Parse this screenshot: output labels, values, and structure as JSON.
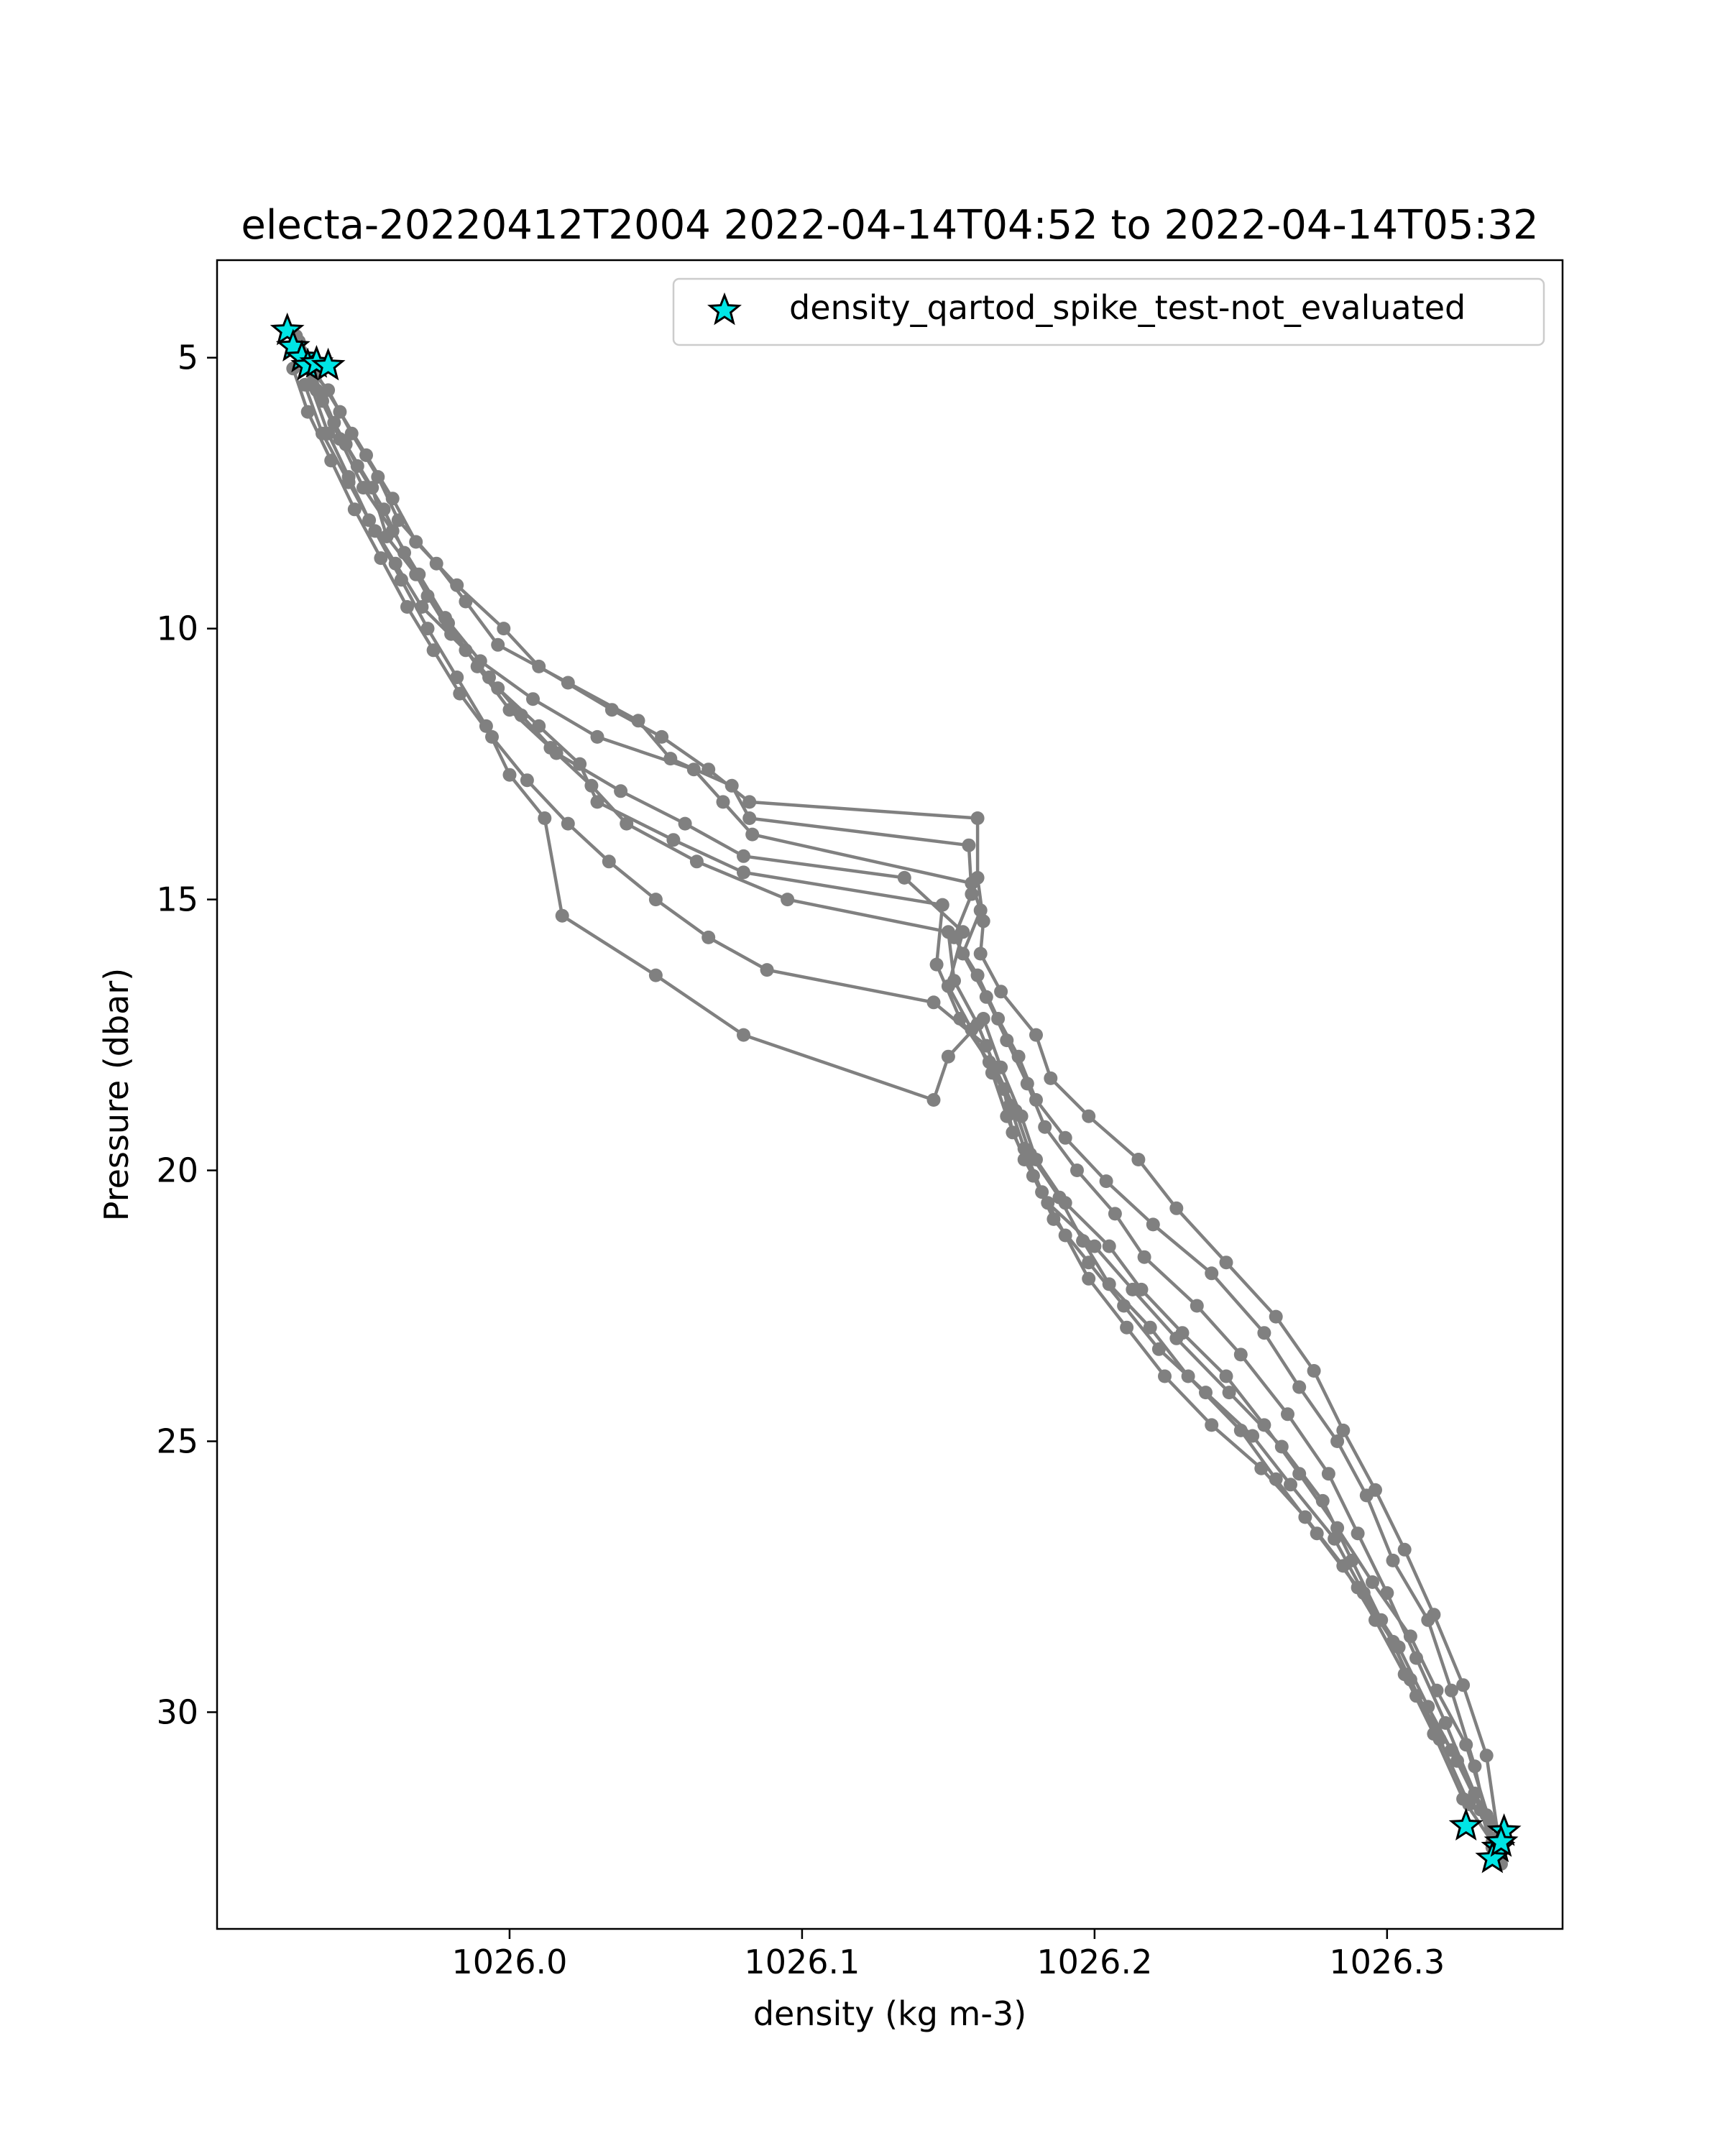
{
  "chart_data": {
    "type": "line",
    "title": "electa-20220412T2004 2022-04-14T04:52 to 2022-04-14T05:32",
    "xlabel": "density (kg m-3)",
    "ylabel": "Pressure (dbar)",
    "xlim": [
      1025.9,
      1026.36
    ],
    "ylim": [
      34.0,
      3.2
    ],
    "y_inverted": true,
    "x_ticks": [
      1026.0,
      1026.1,
      1026.2,
      1026.3
    ],
    "x_tick_labels": [
      "1026.0",
      "1026.1",
      "1026.2",
      "1026.3"
    ],
    "y_ticks": [
      5,
      10,
      15,
      20,
      25,
      30
    ],
    "y_tick_labels": [
      "5",
      "10",
      "15",
      "20",
      "25",
      "30"
    ],
    "grid": false,
    "line_color": "#808080",
    "series": [
      {
        "x": [
          1025.927,
          1025.93,
          1025.934,
          1025.942,
          1025.951,
          1025.96,
          1025.968,
          1025.982,
          1025.998,
          1026.01,
          1026.035,
          1026.052,
          1026.068,
          1026.082,
          1026.16,
          1026.16,
          1026.162,
          1026.161,
          1026.168,
          1026.18,
          1026.185,
          1026.198,
          1026.215,
          1026.228,
          1026.245,
          1026.262,
          1026.275,
          1026.285,
          1026.296,
          1026.306,
          1026.316,
          1026.326,
          1026.334,
          1026.338
        ],
        "y": [
          4.7,
          5.0,
          5.3,
          6.0,
          6.8,
          7.6,
          8.4,
          9.2,
          10.0,
          10.7,
          11.5,
          12.0,
          12.6,
          13.2,
          13.5,
          14.6,
          15.4,
          16.0,
          16.7,
          17.5,
          18.3,
          19.0,
          19.8,
          20.7,
          21.7,
          22.7,
          23.7,
          24.8,
          25.9,
          27.0,
          28.2,
          29.5,
          30.8,
          32.3
        ]
      },
      {
        "x": [
          1025.927,
          1025.93,
          1025.938,
          1025.946,
          1025.955,
          1025.962,
          1025.975,
          1025.985,
          1025.996,
          1026.02,
          1026.044,
          1026.055,
          1026.076,
          1026.082,
          1026.157,
          1026.158,
          1026.152,
          1026.16,
          1026.167,
          1026.174,
          1026.18,
          1026.19,
          1026.204,
          1026.22,
          1026.24,
          1026.258,
          1026.27,
          1026.283,
          1026.293,
          1026.302,
          1026.314,
          1026.322,
          1026.33,
          1026.336
        ],
        "y": [
          4.6,
          5.1,
          5.6,
          6.4,
          7.2,
          8.0,
          8.8,
          9.5,
          10.3,
          11.0,
          11.7,
          12.4,
          12.9,
          13.5,
          14.0,
          14.9,
          15.7,
          16.4,
          17.2,
          17.9,
          18.7,
          19.4,
          20.2,
          21.0,
          21.9,
          23.0,
          24.0,
          25.0,
          26.0,
          27.2,
          28.3,
          29.6,
          31.0,
          32.5
        ]
      },
      {
        "x": [
          1025.928,
          1025.931,
          1025.936,
          1025.944,
          1025.953,
          1025.958,
          1025.968,
          1025.978,
          1025.99,
          1026.008,
          1026.03,
          1026.063,
          1026.073,
          1026.083,
          1026.158,
          1026.161,
          1026.155,
          1026.163,
          1026.17,
          1026.177,
          1026.183,
          1026.194,
          1026.207,
          1026.217,
          1026.235,
          1026.25,
          1026.266,
          1026.28,
          1026.29,
          1026.3,
          1026.31,
          1026.32,
          1026.33,
          1026.338
        ],
        "y": [
          4.8,
          5.2,
          5.8,
          6.6,
          7.4,
          8.3,
          9.0,
          9.8,
          10.6,
          11.3,
          12.0,
          12.6,
          13.2,
          13.8,
          14.7,
          15.2,
          16.0,
          16.8,
          17.6,
          18.4,
          19.2,
          20.0,
          20.8,
          21.6,
          22.5,
          23.4,
          24.5,
          25.6,
          26.7,
          27.8,
          29.0,
          30.2,
          31.5,
          32.6
        ]
      },
      {
        "x": [
          1025.928,
          1025.933,
          1025.94,
          1025.948,
          1025.957,
          1025.964,
          1025.972,
          1025.98,
          1025.993,
          1026.004,
          1026.016,
          1026.038,
          1026.06,
          1026.08,
          1026.135,
          1026.155,
          1026.15,
          1026.158,
          1026.165,
          1026.17,
          1026.176,
          1026.184,
          1026.2,
          1026.213,
          1026.228,
          1026.246,
          1026.264,
          1026.278,
          1026.288,
          1026.298,
          1026.308,
          1026.318,
          1026.328,
          1026.34
        ],
        "y": [
          4.7,
          5.3,
          6.2,
          7.0,
          7.8,
          8.6,
          9.4,
          10.1,
          10.9,
          11.6,
          12.3,
          13.0,
          13.6,
          14.2,
          14.6,
          15.6,
          16.6,
          17.4,
          18.2,
          19.0,
          19.8,
          20.6,
          21.4,
          22.2,
          23.1,
          24.1,
          25.1,
          26.1,
          27.2,
          28.3,
          29.4,
          30.5,
          31.7,
          32.2
        ]
      },
      {
        "x": [
          1025.929,
          1025.932,
          1025.938,
          1025.945,
          1025.952,
          1025.961,
          1025.97,
          1025.985,
          1025.996,
          1026.01,
          1026.024,
          1026.03,
          1026.056,
          1026.08,
          1026.148,
          1026.146,
          1026.154,
          1026.164,
          1026.171,
          1026.176,
          1026.182,
          1026.19,
          1026.198,
          1026.211,
          1026.224,
          1026.24,
          1026.257,
          1026.272,
          1026.285,
          1026.296,
          1026.306,
          1026.316,
          1026.326,
          1026.336
        ],
        "y": [
          4.9,
          5.5,
          6.4,
          7.2,
          8.0,
          8.8,
          9.6,
          10.4,
          11.1,
          11.8,
          12.5,
          13.2,
          13.9,
          14.5,
          15.1,
          16.2,
          17.2,
          18.0,
          18.8,
          19.6,
          20.4,
          21.2,
          22.0,
          22.9,
          23.8,
          24.7,
          25.5,
          26.4,
          27.3,
          28.3,
          29.3,
          30.4,
          31.6,
          32.4
        ]
      },
      {
        "x": [
          1025.93,
          1025.934,
          1025.942,
          1025.95,
          1025.96,
          1025.969,
          1025.979,
          1025.989,
          1026.0,
          1026.014,
          1026.028,
          1026.04,
          1026.064,
          1026.095,
          1026.15,
          1026.152,
          1026.16,
          1026.166,
          1026.173,
          1026.178,
          1026.188,
          1026.196,
          1026.205,
          1026.219,
          1026.232,
          1026.25,
          1026.262,
          1026.276,
          1026.29,
          1026.302,
          1026.31,
          1026.322,
          1026.332,
          1026.337
        ],
        "y": [
          5.0,
          5.6,
          6.5,
          7.4,
          8.2,
          9.0,
          9.9,
          10.7,
          11.5,
          12.2,
          12.9,
          13.6,
          14.3,
          15.0,
          15.6,
          16.5,
          17.3,
          18.1,
          18.9,
          19.7,
          20.5,
          21.3,
          22.1,
          22.9,
          23.8,
          24.8,
          25.7,
          26.7,
          27.7,
          28.7,
          29.7,
          30.7,
          31.8,
          32.7
        ]
      },
      {
        "x": [
          1025.926,
          1025.931,
          1025.939,
          1025.947,
          1025.956,
          1025.965,
          1025.974,
          1025.983,
          1025.994,
          1026.006,
          1026.02,
          1026.034,
          1026.05,
          1026.068,
          1026.088,
          1026.145,
          1026.163,
          1026.169,
          1026.172,
          1026.179,
          1026.186,
          1026.198,
          1026.21,
          1026.222,
          1026.238,
          1026.254,
          1026.267,
          1026.282,
          1026.292,
          1026.304,
          1026.314,
          1026.324,
          1026.334,
          1026.339
        ],
        "y": [
          5.2,
          6.0,
          6.9,
          7.8,
          8.7,
          9.6,
          10.4,
          11.2,
          12.0,
          12.8,
          13.6,
          14.3,
          15.0,
          15.7,
          16.3,
          16.9,
          17.7,
          18.5,
          19.3,
          20.1,
          20.9,
          21.7,
          22.5,
          23.3,
          24.1,
          24.9,
          25.8,
          26.8,
          27.8,
          28.8,
          29.9,
          30.9,
          31.9,
          32.8
        ]
      },
      {
        "x": [
          1025.93,
          1025.936,
          1025.945,
          1025.954,
          1025.963,
          1025.972,
          1025.982,
          1025.992,
          1026.0,
          1026.012,
          1026.018,
          1026.05,
          1026.08,
          1026.145,
          1026.15,
          1026.162,
          1026.168,
          1026.175,
          1026.18,
          1026.19,
          1026.205,
          1026.216,
          1026.23,
          1026.245,
          1026.258,
          1026.27,
          1026.283,
          1026.295,
          1026.308,
          1026.317,
          1026.327,
          1026.335
        ],
        "y": [
          5.5,
          6.4,
          7.3,
          8.2,
          9.1,
          10.0,
          10.9,
          11.8,
          12.7,
          13.5,
          15.3,
          16.4,
          17.5,
          18.7,
          17.9,
          17.2,
          18.1,
          19.0,
          19.8,
          20.6,
          21.4,
          22.2,
          23.0,
          23.8,
          24.7,
          25.6,
          26.6,
          27.6,
          28.6,
          29.6,
          30.6,
          32.0
        ]
      }
    ],
    "flag_series": {
      "name": "density_qartod_spike_test-not_evaluated",
      "marker": "star",
      "color": "#00e5e5",
      "x": [
        1025.924,
        1025.926,
        1025.929,
        1025.931,
        1025.934,
        1025.938,
        1026.327,
        1026.34,
        1026.338,
        1026.336,
        1026.339
      ],
      "y": [
        4.5,
        4.8,
        5.0,
        5.15,
        5.1,
        5.15,
        32.1,
        32.2,
        32.5,
        32.7,
        32.4
      ]
    },
    "legend": {
      "position": "upper right",
      "entries": [
        "density_qartod_spike_test-not_evaluated"
      ]
    }
  }
}
